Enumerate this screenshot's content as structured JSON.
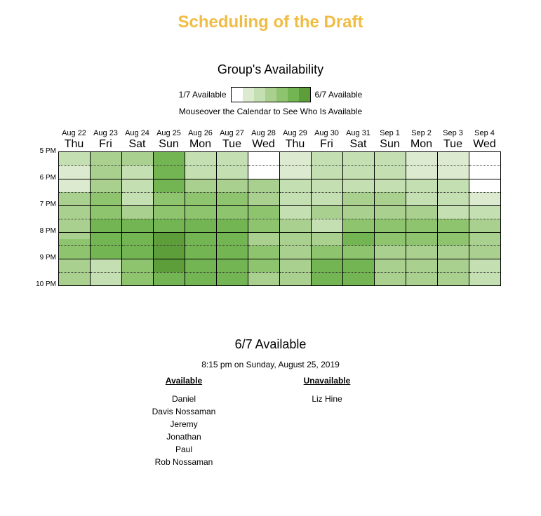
{
  "header": {
    "title": "Scheduling of the Draft"
  },
  "availability": {
    "heading": "Group's Availability",
    "legend_min": "1/7 Available",
    "legend_max": "6/7 Available",
    "legend_colors": [
      "#ffffff",
      "#dcebd0",
      "#c4dfb1",
      "#a9d08e",
      "#8fc46f",
      "#74b553",
      "#5d9e3a"
    ],
    "hint": "Mouseover the Calendar to See Who Is Available"
  },
  "calendar": {
    "days": [
      {
        "date": "Aug 22",
        "dow": "Thu"
      },
      {
        "date": "Aug 23",
        "dow": "Fri"
      },
      {
        "date": "Aug 24",
        "dow": "Sat"
      },
      {
        "date": "Aug 25",
        "dow": "Sun"
      },
      {
        "date": "Aug 26",
        "dow": "Mon"
      },
      {
        "date": "Aug 27",
        "dow": "Tue"
      },
      {
        "date": "Aug 28",
        "dow": "Wed"
      },
      {
        "date": "Aug 29",
        "dow": "Thu"
      },
      {
        "date": "Aug 30",
        "dow": "Fri"
      },
      {
        "date": "Aug 31",
        "dow": "Sat"
      },
      {
        "date": "Sep 1",
        "dow": "Sun"
      },
      {
        "date": "Sep 2",
        "dow": "Mon"
      },
      {
        "date": "Sep 3",
        "dow": "Tue"
      },
      {
        "date": "Sep 4",
        "dow": "Wed"
      }
    ],
    "times": [
      "5 PM",
      "6 PM",
      "7 PM",
      "8 PM",
      "9 PM",
      "10 PM"
    ],
    "levels": [
      [
        2,
        2,
        1,
        1,
        1,
        1,
        3,
        3,
        3,
        3,
        3,
        3,
        3,
        4,
        4,
        4,
        3,
        3,
        3,
        3
      ],
      [
        3,
        3,
        3,
        3,
        3,
        3,
        4,
        4,
        4,
        4,
        5,
        5,
        5,
        5,
        5,
        5,
        2,
        2,
        2,
        2
      ],
      [
        3,
        3,
        2,
        2,
        2,
        2,
        2,
        2,
        3,
        3,
        5,
        5,
        5,
        5,
        5,
        5,
        4,
        4,
        4,
        4
      ],
      [
        5,
        5,
        5,
        5,
        5,
        5,
        4,
        4,
        4,
        4,
        5,
        5,
        6,
        6,
        6,
        6,
        6,
        6,
        5,
        5
      ],
      [
        2,
        2,
        2,
        2,
        3,
        3,
        4,
        4,
        4,
        4,
        5,
        5,
        5,
        5,
        5,
        5,
        5,
        5,
        5,
        5
      ],
      [
        2,
        2,
        2,
        2,
        3,
        3,
        4,
        4,
        4,
        4,
        5,
        5,
        5,
        5,
        5,
        5,
        5,
        5,
        5,
        5
      ],
      [
        0,
        0,
        0,
        0,
        3,
        3,
        3,
        3,
        4,
        4,
        4,
        4,
        3,
        3,
        4,
        4,
        4,
        4,
        3,
        3
      ],
      [
        1,
        1,
        1,
        1,
        2,
        2,
        2,
        2,
        2,
        2,
        3,
        3,
        3,
        3,
        3,
        3,
        3,
        3,
        3,
        3
      ],
      [
        2,
        2,
        2,
        2,
        2,
        2,
        2,
        2,
        3,
        3,
        2,
        2,
        3,
        3,
        4,
        4,
        5,
        5,
        5,
        5
      ],
      [
        2,
        2,
        2,
        2,
        2,
        2,
        3,
        3,
        3,
        3,
        4,
        4,
        5,
        5,
        4,
        4,
        5,
        5,
        5,
        5
      ],
      [
        2,
        2,
        2,
        2,
        2,
        2,
        3,
        3,
        3,
        3,
        4,
        4,
        4,
        4,
        3,
        3,
        3,
        3,
        3,
        3
      ],
      [
        1,
        1,
        1,
        1,
        2,
        2,
        2,
        2,
        3,
        3,
        4,
        4,
        4,
        4,
        3,
        3,
        3,
        3,
        3,
        3
      ],
      [
        1,
        1,
        1,
        1,
        2,
        2,
        2,
        2,
        2,
        2,
        4,
        4,
        4,
        4,
        3,
        3,
        3,
        3,
        3,
        3
      ],
      [
        0,
        0,
        0,
        0,
        0,
        0,
        1,
        1,
        2,
        2,
        3,
        3,
        3,
        3,
        3,
        3,
        2,
        2,
        2,
        2
      ]
    ]
  },
  "details": {
    "title": "6/7 Available",
    "when": "8:15 pm on Sunday, August 25, 2019",
    "available_heading": "Available",
    "unavailable_heading": "Unavailable",
    "available": [
      "Daniel",
      "Davis Nossaman",
      "Jeremy",
      "Jonathan",
      "Paul",
      "Rob Nossaman"
    ],
    "unavailable": [
      "Liz Hine"
    ]
  }
}
